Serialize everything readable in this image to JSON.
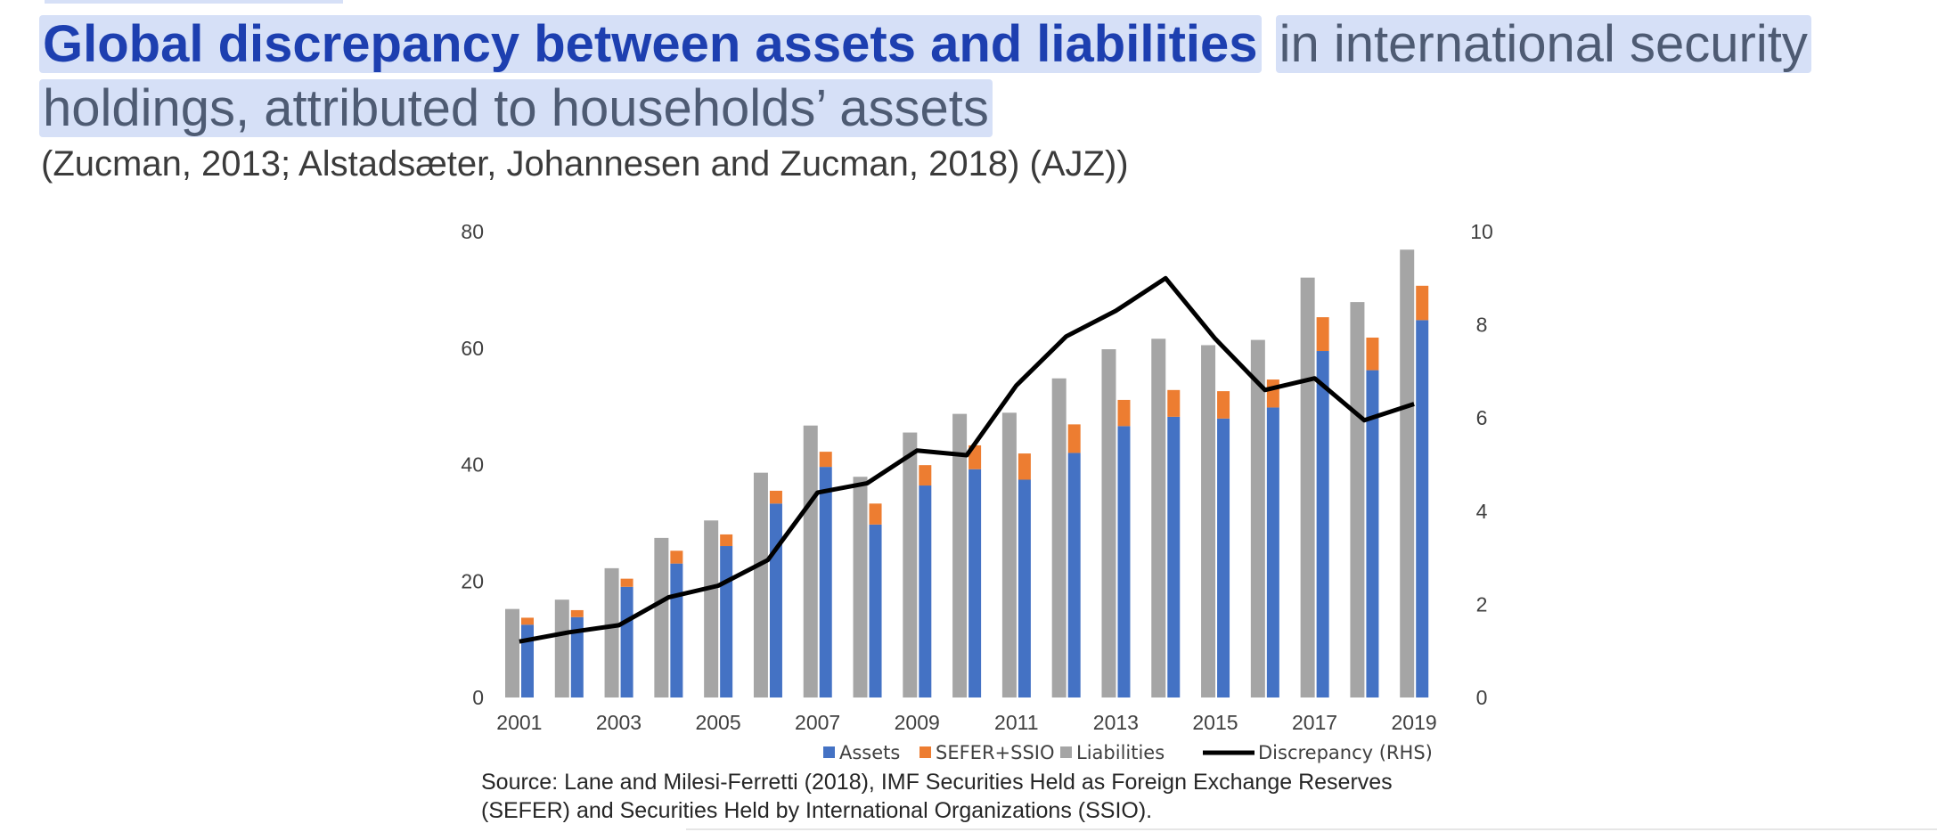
{
  "header": {
    "title_bold": "Global discrepancy between assets and liabilities",
    "title_line1_rest": "in international security",
    "title_line2": "holdings, attributed to households’ assets",
    "subtitle": "(Zucman, 2013; Alstadsæter, Johannesen and Zucman, 2018) (AJZ))"
  },
  "source": {
    "line1": "Source: Lane and Milesi-Ferretti (2018), IMF Securities Held as Foreign Exchange Reserves",
    "line2": "(SEFER) and Securities Held by International Organizations (SSIO)."
  },
  "chart_data": {
    "type": "bar",
    "categories": [
      "2001",
      "2002",
      "2003",
      "2004",
      "2005",
      "2006",
      "2007",
      "2008",
      "2009",
      "2010",
      "2011",
      "2012",
      "2013",
      "2014",
      "2015",
      "2016",
      "2017",
      "2018",
      "2019"
    ],
    "x_tick_labels": [
      "2001",
      "",
      "2003",
      "",
      "2005",
      "",
      "2007",
      "",
      "2009",
      "",
      "2011",
      "",
      "2013",
      "",
      "2015",
      "",
      "2017",
      "",
      "2019"
    ],
    "series": [
      {
        "name": "Assets",
        "type": "bar",
        "axis": "left",
        "stack": "assets",
        "color": "#4472c4",
        "values": [
          12.5,
          13.8,
          19,
          23,
          26,
          33.3,
          39.6,
          29.7,
          36.4,
          39.2,
          37.4,
          42,
          46.6,
          48.2,
          47.9,
          49.8,
          59.5,
          56.2,
          64.8
        ]
      },
      {
        "name": "SEFER+SSIO",
        "type": "bar",
        "axis": "left",
        "stack": "assets",
        "color": "#ed7d31",
        "values": [
          1.2,
          1.2,
          1.4,
          2.2,
          2.0,
          2.2,
          2.6,
          3.6,
          3.5,
          4.1,
          4.5,
          4.9,
          4.5,
          4.6,
          4.7,
          4.8,
          5.8,
          5.6,
          5.9
        ]
      },
      {
        "name": "Liabilities",
        "type": "bar",
        "axis": "left",
        "color": "#a5a5a5",
        "values": [
          15.2,
          16.8,
          22.2,
          27.4,
          30.4,
          38.6,
          46.7,
          37.9,
          45.5,
          48.7,
          48.9,
          54.8,
          59.8,
          61.6,
          60.5,
          61.4,
          72.1,
          67.9,
          76.9
        ]
      },
      {
        "name": "Discrepancy (RHS)",
        "type": "line",
        "axis": "right",
        "color": "#000000",
        "values": [
          1.2,
          1.4,
          1.55,
          2.15,
          2.4,
          2.95,
          4.4,
          4.6,
          5.3,
          5.2,
          6.7,
          7.75,
          8.3,
          9.0,
          7.7,
          6.6,
          6.85,
          5.95,
          6.3
        ]
      }
    ],
    "y_left": {
      "min": 0,
      "max": 80,
      "ticks": [
        0,
        20,
        40,
        60,
        80
      ]
    },
    "y_right": {
      "min": 0,
      "max": 10,
      "ticks": [
        0,
        2,
        4,
        6,
        8,
        10
      ]
    },
    "grid": false,
    "legend_position": "bottom"
  }
}
